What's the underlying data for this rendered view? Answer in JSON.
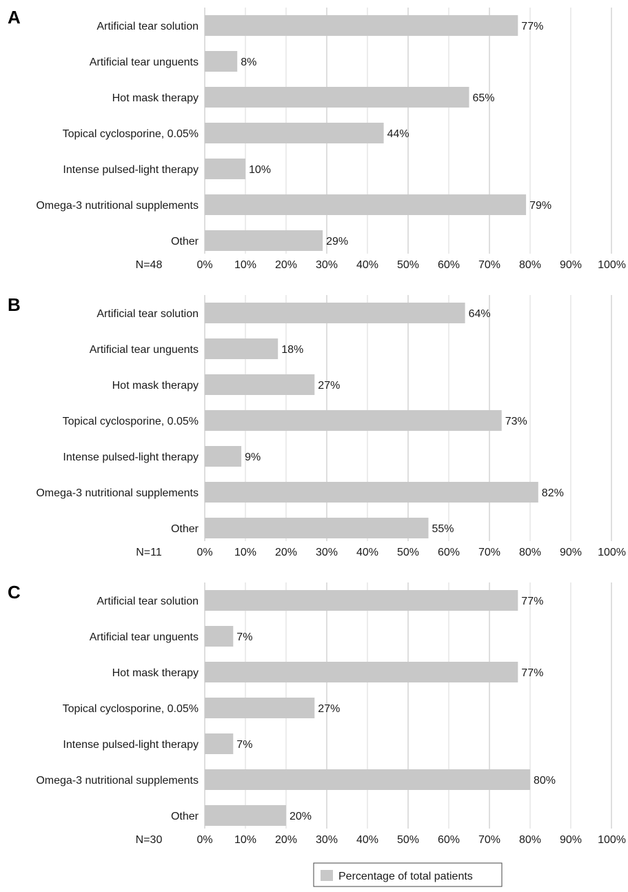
{
  "chart_data": [
    {
      "type": "bar",
      "orientation": "horizontal",
      "panel": "A",
      "n_label": "N=48",
      "categories": [
        "Artificial tear solution",
        "Artificial tear unguents",
        "Hot mask therapy",
        "Topical cyclosporine, 0.05%",
        "Intense pulsed-light therapy",
        "Omega-3 nutritional supplements",
        "Other"
      ],
      "values": [
        77,
        8,
        65,
        44,
        10,
        79,
        29
      ],
      "value_labels": [
        "77%",
        "8%",
        "65%",
        "44%",
        "10%",
        "79%",
        "29%"
      ],
      "xlim": [
        0,
        100
      ],
      "x_ticks": [
        "0%",
        "10%",
        "20%",
        "30%",
        "40%",
        "50%",
        "60%",
        "70%",
        "80%",
        "90%",
        "100%"
      ],
      "grid": true
    },
    {
      "type": "bar",
      "orientation": "horizontal",
      "panel": "B",
      "n_label": "N=11",
      "categories": [
        "Artificial tear solution",
        "Artificial tear unguents",
        "Hot mask therapy",
        "Topical cyclosporine, 0.05%",
        "Intense pulsed-light therapy",
        "Omega-3 nutritional supplements",
        "Other"
      ],
      "values": [
        64,
        18,
        27,
        73,
        9,
        82,
        55
      ],
      "value_labels": [
        "64%",
        "18%",
        "27%",
        "73%",
        "9%",
        "82%",
        "55%"
      ],
      "xlim": [
        0,
        100
      ],
      "x_ticks": [
        "0%",
        "10%",
        "20%",
        "30%",
        "40%",
        "50%",
        "60%",
        "70%",
        "80%",
        "90%",
        "100%"
      ],
      "grid": true
    },
    {
      "type": "bar",
      "orientation": "horizontal",
      "panel": "C",
      "n_label": "N=30",
      "categories": [
        "Artificial tear solution",
        "Artificial tear unguents",
        "Hot mask therapy",
        "Topical cyclosporine, 0.05%",
        "Intense pulsed-light therapy",
        "Omega-3 nutritional supplements",
        "Other"
      ],
      "values": [
        77,
        7,
        77,
        27,
        7,
        80,
        20
      ],
      "value_labels": [
        "77%",
        "7%",
        "77%",
        "27%",
        "7%",
        "80%",
        "20%"
      ],
      "xlim": [
        0,
        100
      ],
      "x_ticks": [
        "0%",
        "10%",
        "20%",
        "30%",
        "40%",
        "50%",
        "60%",
        "70%",
        "80%",
        "90%",
        "100%"
      ],
      "grid": true
    }
  ],
  "legend": {
    "label": "Percentage of total patients",
    "placement": "bottom-center"
  },
  "colors": {
    "bar": "#c8c8c8",
    "grid": "#d9d9d9",
    "grid_major": "#bdbdbd",
    "legend_border": "#444444"
  }
}
